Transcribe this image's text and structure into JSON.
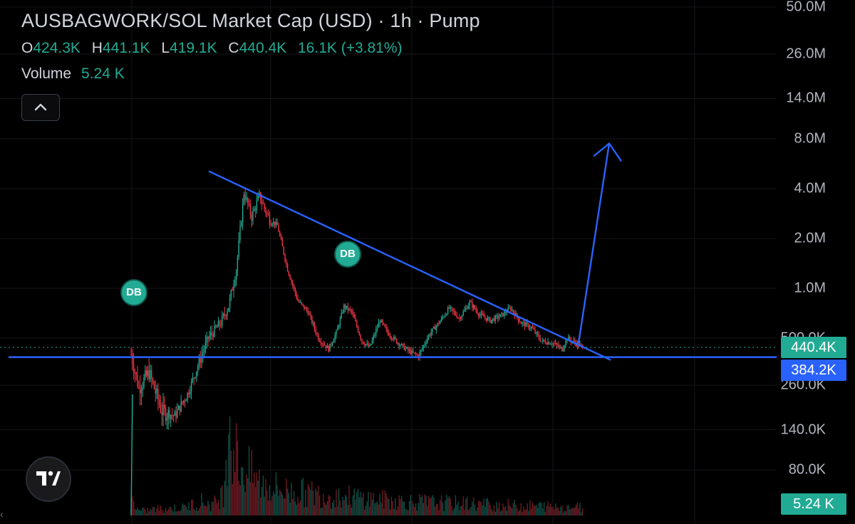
{
  "header": {
    "title": "AUSBAGWORK/SOL Market Cap (USD) · 1h · Pump",
    "ohlc": {
      "o_label": "O",
      "o_value": "424.3K",
      "h_label": "H",
      "h_value": "441.1K",
      "l_label": "L",
      "l_value": "419.1K",
      "c_label": "C",
      "c_value": "440.4K",
      "change": "16.1K (+3.81%)"
    },
    "volume_label": "Volume",
    "volume_value": "5.24 K"
  },
  "price_tags": {
    "last_price": "440.4K",
    "line_price": "384.2K",
    "volume_tag": "5.24 K"
  },
  "markers": {
    "db1": "DB",
    "db2": "DB"
  },
  "colors": {
    "background": "#000000",
    "up": "#22ab94",
    "down": "#f23645",
    "trendline": "#2962ff",
    "last_price_tag": "#22ab94",
    "line_tag": "#2962ff"
  },
  "icons": [
    "chevron-up-icon",
    "tradingview-logo-icon"
  ],
  "edge_glyph": "‹",
  "chart_data": {
    "type": "candlestick",
    "scale": "log",
    "y_tick_labels": [
      "50.0M",
      "26.0M",
      "14.0M",
      "8.0M",
      "4.0M",
      "2.0M",
      "1.0M",
      "500.0K",
      "260.0K",
      "140.0K",
      "80.0K"
    ],
    "y_ticks": [
      50000000,
      26000000,
      14000000,
      8000000,
      4000000,
      2000000,
      1000000,
      500000,
      260000,
      140000,
      80000
    ],
    "grid": true,
    "last_close": 440400,
    "horizontal_line": 384200,
    "trendline_from_high": 5000000,
    "breakout_arrow_target": 7500000,
    "segments": [
      [
        0,
        400000
      ],
      [
        6,
        250000
      ],
      [
        14,
        310000
      ],
      [
        24,
        180000
      ],
      [
        34,
        170000
      ],
      [
        44,
        230000
      ],
      [
        52,
        340000
      ],
      [
        60,
        500000
      ],
      [
        70,
        620000
      ],
      [
        76,
        780000
      ],
      [
        82,
        1300000
      ],
      [
        88,
        3800000
      ],
      [
        94,
        2700000
      ],
      [
        100,
        3600000
      ],
      [
        108,
        2600000
      ],
      [
        114,
        2400000
      ],
      [
        122,
        1300000
      ],
      [
        130,
        840000
      ],
      [
        138,
        720000
      ],
      [
        146,
        500000
      ],
      [
        154,
        430000
      ],
      [
        160,
        540000
      ],
      [
        166,
        780000
      ],
      [
        172,
        720000
      ],
      [
        180,
        480000
      ],
      [
        186,
        440000
      ],
      [
        194,
        640000
      ],
      [
        200,
        540000
      ],
      [
        208,
        470000
      ],
      [
        216,
        420000
      ],
      [
        224,
        390000
      ],
      [
        232,
        520000
      ],
      [
        240,
        620000
      ],
      [
        248,
        760000
      ],
      [
        256,
        660000
      ],
      [
        264,
        820000
      ],
      [
        272,
        690000
      ],
      [
        280,
        640000
      ],
      [
        288,
        680000
      ],
      [
        296,
        760000
      ],
      [
        304,
        620000
      ],
      [
        312,
        580000
      ],
      [
        320,
        480000
      ],
      [
        328,
        470000
      ],
      [
        336,
        430000
      ],
      [
        340,
        500000
      ],
      [
        346,
        470000
      ],
      [
        352,
        440400
      ]
    ],
    "volume_profile": [
      [
        0,
        300
      ],
      [
        6,
        80
      ],
      [
        20,
        120
      ],
      [
        40,
        140
      ],
      [
        55,
        260
      ],
      [
        64,
        200
      ],
      [
        72,
        420
      ],
      [
        76,
        2000
      ],
      [
        80,
        1200
      ],
      [
        86,
        900
      ],
      [
        100,
        600
      ],
      [
        120,
        450
      ],
      [
        150,
        380
      ],
      [
        180,
        320
      ],
      [
        220,
        250
      ],
      [
        260,
        220
      ],
      [
        300,
        180
      ],
      [
        352,
        150
      ]
    ]
  }
}
